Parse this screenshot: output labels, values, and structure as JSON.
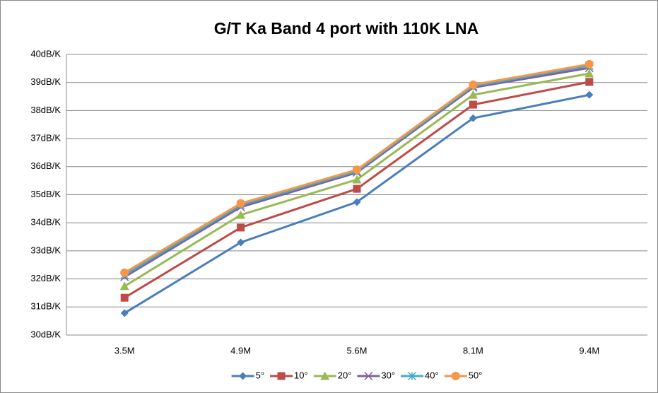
{
  "chart_data": {
    "type": "line",
    "title": "G/T Ka Band 4 port with 110K LNA",
    "categories": [
      "3.5M",
      "4.9M",
      "5.6M",
      "8.1M",
      "9.4M"
    ],
    "series": [
      {
        "name": "5°",
        "color": "#4a7ebb",
        "marker": "diamond",
        "values": [
          30.78,
          33.3,
          34.74,
          37.73,
          38.56
        ]
      },
      {
        "name": "10°",
        "color": "#be4b48",
        "marker": "square",
        "values": [
          31.33,
          33.83,
          35.21,
          38.21,
          39.02
        ]
      },
      {
        "name": "20°",
        "color": "#98b954",
        "marker": "triangle",
        "values": [
          31.74,
          34.28,
          35.54,
          38.56,
          39.32
        ]
      },
      {
        "name": "30°",
        "color": "#7d60a0",
        "marker": "x",
        "values": [
          32.07,
          34.56,
          35.79,
          38.82,
          39.52
        ]
      },
      {
        "name": "40°",
        "color": "#46aac5",
        "marker": "star",
        "values": [
          32.14,
          34.63,
          35.84,
          38.87,
          39.6
        ]
      },
      {
        "name": "50°",
        "color": "#f79646",
        "marker": "circle",
        "values": [
          32.22,
          34.69,
          35.89,
          38.92,
          39.65
        ]
      }
    ],
    "ylim": [
      30,
      40
    ],
    "yticks": [
      {
        "value": 30,
        "label": "30dB/K"
      },
      {
        "value": 31,
        "label": "31dB/K"
      },
      {
        "value": 32,
        "label": "32dB/K"
      },
      {
        "value": 33,
        "label": "33dB/K"
      },
      {
        "value": 34,
        "label": "34dB/K"
      },
      {
        "value": 35,
        "label": "35dB/K"
      },
      {
        "value": 36,
        "label": "36dB/K"
      },
      {
        "value": 37,
        "label": "37dB/K"
      },
      {
        "value": 38,
        "label": "38dB/K"
      },
      {
        "value": 39,
        "label": "39dB/K"
      },
      {
        "value": 40,
        "label": "40dB/K"
      }
    ],
    "grid": true,
    "legend": "bottom"
  }
}
